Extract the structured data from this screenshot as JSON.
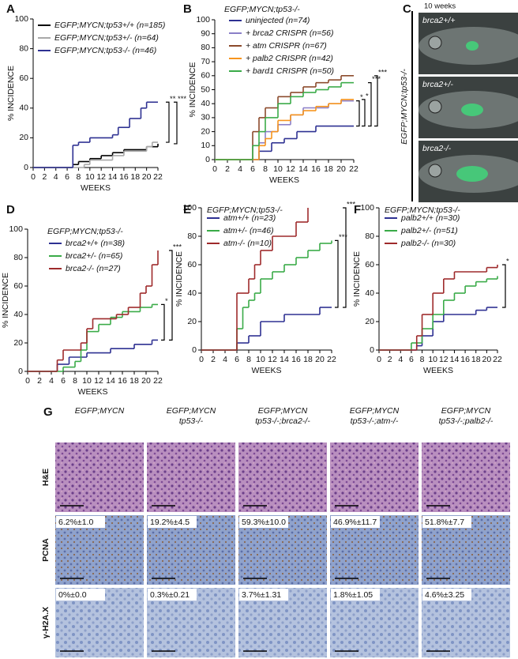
{
  "chart_data": [
    {
      "type": "line",
      "step": true,
      "panel": "A",
      "ylabel": "% INCIDENCE",
      "xlabel": "WEEKS",
      "xlim": [
        0,
        22
      ],
      "xticks": [
        0,
        2,
        4,
        6,
        8,
        10,
        12,
        14,
        16,
        18,
        20,
        22
      ],
      "ylim": [
        0,
        100
      ],
      "yticks": [
        0,
        20,
        40,
        60,
        80,
        100
      ],
      "series": [
        {
          "name": "EGFP;MYCN;tp53+/+ (n=185)",
          "color": "#000000",
          "x": [
            0,
            7,
            8,
            10,
            12,
            14,
            16,
            20,
            22
          ],
          "values": [
            0,
            2,
            4,
            6,
            8,
            10,
            12,
            14,
            16
          ]
        },
        {
          "name": "EGFP;MYCN;tp53+/- (n=64)",
          "color": "#a8a8a8",
          "x": [
            0,
            9,
            10,
            14,
            16,
            20,
            21,
            22
          ],
          "values": [
            0,
            2,
            5,
            8,
            11,
            14,
            17,
            17
          ]
        },
        {
          "name": "EGFP;MYCN;tp53-/- (n=46)",
          "color": "#2e3192",
          "x": [
            0,
            7,
            8,
            10,
            14,
            15,
            17,
            19,
            20,
            22
          ],
          "values": [
            0,
            15,
            17,
            20,
            22,
            27,
            33,
            40,
            44,
            44
          ]
        }
      ],
      "annotations": [
        "***",
        "**"
      ]
    },
    {
      "type": "line",
      "step": true,
      "panel": "B",
      "subtitle": "EGFP;MYCN;tp53-/-",
      "ylabel": "% INCIDENCE",
      "xlabel": "WEEKS",
      "xlim": [
        0,
        22
      ],
      "xticks": [
        0,
        2,
        4,
        6,
        8,
        10,
        12,
        14,
        16,
        18,
        20,
        22
      ],
      "ylim": [
        0,
        100
      ],
      "yticks": [
        0,
        10,
        20,
        30,
        40,
        50,
        60,
        70,
        80,
        90,
        100
      ],
      "series": [
        {
          "name": "uninjected (n=74)",
          "color": "#2e3192",
          "x": [
            0,
            7,
            9,
            11,
            13,
            16,
            22
          ],
          "values": [
            0,
            6,
            12,
            15,
            20,
            24,
            24
          ]
        },
        {
          "name": "+ brca2 CRISPR (n=56)",
          "color": "#8a7fc7",
          "x": [
            0,
            7,
            8,
            10,
            12,
            14,
            18,
            20,
            22
          ],
          "values": [
            0,
            12,
            20,
            25,
            32,
            37,
            40,
            42,
            42
          ]
        },
        {
          "name": "+ atm CRISPR (n=67)",
          "color": "#8b4a2b",
          "x": [
            0,
            6,
            7,
            8,
            10,
            12,
            14,
            16,
            18,
            20,
            22
          ],
          "values": [
            0,
            20,
            30,
            37,
            45,
            48,
            52,
            55,
            57,
            60,
            60
          ]
        },
        {
          "name": "+ palb2 CRISPR (n=42)",
          "color": "#f7941d",
          "x": [
            0,
            7,
            8,
            9,
            10,
            12,
            14,
            16,
            18,
            20,
            22
          ],
          "values": [
            0,
            10,
            15,
            20,
            28,
            32,
            35,
            38,
            40,
            43,
            43
          ]
        },
        {
          "name": "+ bard1 CRISPR (n=50)",
          "color": "#3aab48",
          "x": [
            0,
            6,
            7,
            8,
            10,
            12,
            14,
            16,
            18,
            20,
            22
          ],
          "values": [
            0,
            10,
            20,
            30,
            40,
            45,
            48,
            50,
            52,
            55,
            55
          ]
        }
      ],
      "annotations": [
        "***",
        "***",
        "*",
        "*"
      ]
    },
    {
      "type": "line",
      "step": true,
      "panel": "D",
      "subtitle": "EGFP;MYCN;tp53-/-",
      "ylabel": "% INCIDENCE",
      "xlabel": "WEEKS",
      "xlim": [
        0,
        22
      ],
      "xticks": [
        0,
        2,
        4,
        6,
        8,
        10,
        12,
        14,
        16,
        18,
        20,
        22
      ],
      "ylim": [
        0,
        100
      ],
      "yticks": [
        0,
        20,
        40,
        60,
        80,
        100
      ],
      "series": [
        {
          "name": "brca2+/+ (n=38)",
          "color": "#2e3192",
          "x": [
            0,
            5,
            7,
            10,
            14,
            18,
            21,
            22
          ],
          "values": [
            0,
            5,
            10,
            13,
            16,
            19,
            22,
            22
          ]
        },
        {
          "name": "brca2+/- (n=65)",
          "color": "#3aab48",
          "x": [
            0,
            6,
            8,
            9,
            10,
            12,
            14,
            16,
            19,
            21,
            22
          ],
          "values": [
            0,
            3,
            7,
            15,
            28,
            33,
            38,
            42,
            45,
            47,
            47
          ]
        },
        {
          "name": "brca2-/- (n=27)",
          "color": "#9e2a2b",
          "x": [
            0,
            5,
            6,
            9,
            10,
            11,
            15,
            17,
            19,
            20,
            21,
            22
          ],
          "values": [
            0,
            8,
            15,
            20,
            30,
            37,
            40,
            45,
            55,
            60,
            75,
            85
          ]
        }
      ],
      "annotations": [
        "***",
        "*"
      ]
    },
    {
      "type": "line",
      "step": true,
      "panel": "E",
      "subtitle": "EGFP;MYCN;tp53-/-",
      "ylabel": "% INCIDENCE",
      "xlabel": "WEEKS",
      "xlim": [
        0,
        22
      ],
      "xticks": [
        0,
        2,
        4,
        6,
        8,
        10,
        12,
        14,
        16,
        18,
        20,
        22
      ],
      "ylim": [
        0,
        100
      ],
      "yticks": [
        0,
        20,
        40,
        60,
        80,
        100
      ],
      "series": [
        {
          "name": "atm+/+ (n=23)",
          "color": "#2e3192",
          "x": [
            0,
            6,
            8,
            10,
            14,
            20,
            22
          ],
          "values": [
            0,
            5,
            10,
            20,
            25,
            30,
            30
          ]
        },
        {
          "name": "atm+/- (n=46)",
          "color": "#3aab48",
          "x": [
            0,
            6,
            7,
            8,
            9,
            10,
            12,
            14,
            16,
            18,
            20,
            22
          ],
          "values": [
            0,
            15,
            30,
            35,
            40,
            50,
            55,
            60,
            65,
            70,
            75,
            77
          ]
        },
        {
          "name": "atm-/- (n=10)",
          "color": "#9e2a2b",
          "x": [
            0,
            6,
            8,
            9,
            10,
            12,
            16,
            18
          ],
          "values": [
            0,
            40,
            50,
            60,
            70,
            80,
            90,
            100
          ]
        }
      ],
      "annotations": [
        "***",
        "***"
      ]
    },
    {
      "type": "line",
      "step": true,
      "panel": "F",
      "subtitle": "EGFP;MYCN;tp53-/-",
      "ylabel": "% INCIDENCE",
      "xlabel": "WEEKS",
      "xlim": [
        0,
        22
      ],
      "xticks": [
        0,
        2,
        4,
        6,
        8,
        10,
        12,
        14,
        16,
        18,
        20,
        22
      ],
      "ylim": [
        0,
        100
      ],
      "yticks": [
        0,
        20,
        40,
        60,
        80,
        100
      ],
      "series": [
        {
          "name": "palb2+/+ (n=30)",
          "color": "#2e3192",
          "x": [
            0,
            7,
            8,
            10,
            12,
            18,
            20,
            22
          ],
          "values": [
            0,
            3,
            10,
            20,
            25,
            28,
            30,
            30
          ]
        },
        {
          "name": "palb2+/- (n=51)",
          "color": "#3aab48",
          "x": [
            0,
            6,
            8,
            10,
            12,
            14,
            16,
            18,
            20,
            22
          ],
          "values": [
            0,
            5,
            15,
            25,
            35,
            40,
            45,
            48,
            50,
            52
          ]
        },
        {
          "name": "palb2-/- (n=30)",
          "color": "#9e2a2b",
          "x": [
            0,
            7,
            8,
            10,
            12,
            14,
            20,
            22
          ],
          "values": [
            0,
            10,
            25,
            40,
            50,
            55,
            58,
            60
          ]
        }
      ],
      "annotations": [
        "*"
      ]
    }
  ],
  "panel_c": {
    "label": "C",
    "time": "10 weeks",
    "side_label": "EGFP;MYCN;tp53-/-",
    "images": [
      "brca2+/+",
      "brca2+/-",
      "brca2-/-"
    ]
  },
  "panel_g": {
    "label": "G",
    "columns": [
      [
        "EGFP;MYCN"
      ],
      [
        "EGFP;MYCN",
        "tp53-/-"
      ],
      [
        "EGFP;MYCN",
        "tp53-/-;brca2-/-"
      ],
      [
        "EGFP;MYCN",
        "tp53-/-;atm-/-"
      ],
      [
        "EGFP;MYCN",
        "tp53-/-;palb2-/-"
      ]
    ],
    "rows": [
      "H&E",
      "PCNA",
      "γ-H2A.X"
    ],
    "pcna": [
      "6.2%±1.0",
      "19.2%±4.5",
      "59.3%±10.0",
      "46.9%±11.7",
      "51.8%±7.7"
    ],
    "h2ax": [
      "0%±0.0",
      "0.3%±0.21",
      "3.7%±1.31",
      "1.8%±1.05",
      "4.6%±3.25"
    ]
  }
}
